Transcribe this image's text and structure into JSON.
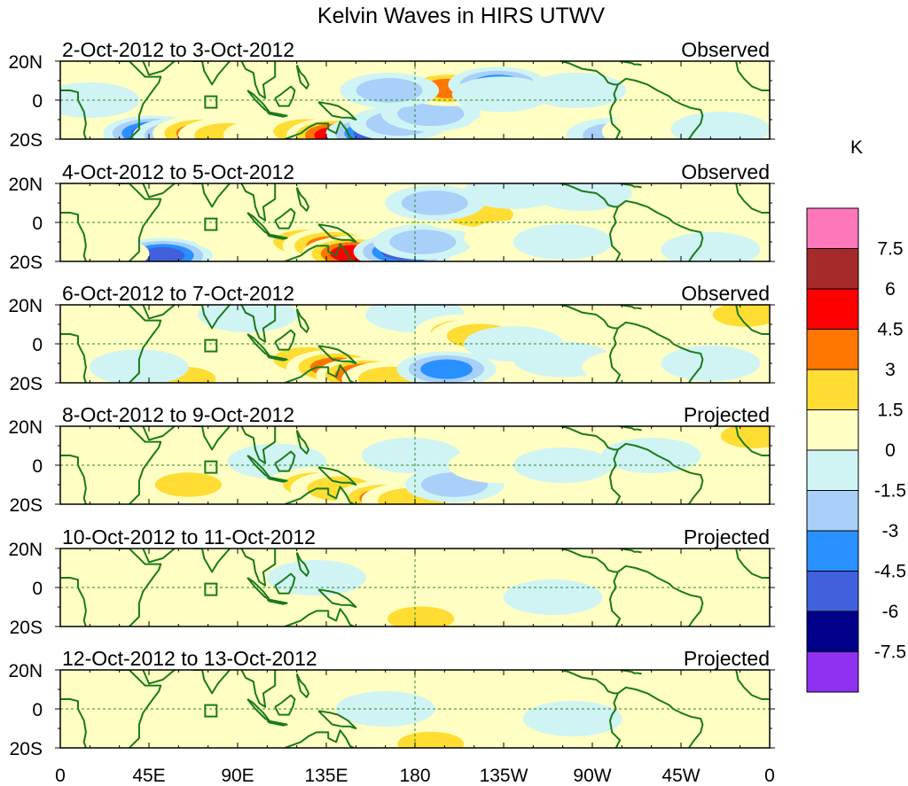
{
  "chart_data": {
    "type": "heatmap",
    "title": "Kelvin Waves in HIRS UTWV",
    "xlabel": "",
    "ylabel": "",
    "x_tick_labels": [
      "0",
      "45E",
      "90E",
      "135E",
      "180",
      "135W",
      "90W",
      "45W",
      "0"
    ],
    "y_tick_labels": [
      "20N",
      "0",
      "20S"
    ],
    "panels": [
      {
        "date_range": "2-Oct-2012 to 3-Oct-2012",
        "status": "Observed"
      },
      {
        "date_range": "4-Oct-2012 to 5-Oct-2012",
        "status": "Observed"
      },
      {
        "date_range": "6-Oct-2012 to 7-Oct-2012",
        "status": "Observed"
      },
      {
        "date_range": "8-Oct-2012 to 9-Oct-2012",
        "status": "Projected"
      },
      {
        "date_range": "10-Oct-2012 to 11-Oct-2012",
        "status": "Projected"
      },
      {
        "date_range": "12-Oct-2012 to 13-Oct-2012",
        "status": "Projected"
      }
    ],
    "colorbar": {
      "units": "K",
      "tick_labels": [
        "7.5",
        "6",
        "4.5",
        "3",
        "1.5",
        "0",
        "-1.5",
        "-3",
        "-4.5",
        "-6",
        "-7.5"
      ],
      "colors": [
        "#ff77bb",
        "#a52a2a",
        "#ff0000",
        "#ff7700",
        "#ffdd33",
        "#ffffc4",
        "#d0f4f4",
        "#a8d0f8",
        "#2891ff",
        "#4060dd",
        "#00008b",
        "#9030f0"
      ]
    },
    "anomalies": [
      [
        {
          "lon": 47,
          "lat": -17,
          "v": -5.5
        },
        {
          "lon": 62,
          "lat": -18,
          "v": -3.5
        },
        {
          "lon": 72,
          "lat": -17,
          "v": 3.8
        },
        {
          "lon": 85,
          "lat": -18,
          "v": 2.8
        },
        {
          "lon": 108,
          "lat": -18,
          "v": 1.4
        },
        {
          "lon": 125,
          "lat": -16,
          "v": 2.6
        },
        {
          "lon": 140,
          "lat": -18,
          "v": 4.6
        },
        {
          "lon": 160,
          "lat": -17,
          "v": -5.5
        },
        {
          "lon": 172,
          "lat": -12,
          "v": -2.5
        },
        {
          "lon": 188,
          "lat": -7,
          "v": -1.6
        },
        {
          "lon": 197,
          "lat": 6,
          "v": 3.6
        },
        {
          "lon": 222,
          "lat": 8,
          "v": -3.2
        },
        {
          "lon": 224,
          "lat": 3,
          "v": -1.5
        },
        {
          "lon": 167,
          "lat": 5,
          "v": -1.6
        },
        {
          "lon": 262,
          "lat": 5,
          "v": -1.5
        },
        {
          "lon": 282,
          "lat": -18,
          "v": -1.6
        },
        {
          "lon": 300,
          "lat": -16,
          "v": 1.0
        },
        {
          "lon": 335,
          "lat": -15,
          "v": -1.3
        },
        {
          "lon": 15,
          "lat": 0,
          "v": -1.2
        },
        {
          "lon": 232,
          "lat": -15,
          "v": 1.1
        }
      ],
      [
        {
          "lon": 52,
          "lat": -17,
          "v": -5.0
        },
        {
          "lon": 92,
          "lat": -7,
          "v": 1.1
        },
        {
          "lon": 125,
          "lat": -10,
          "v": 2.4
        },
        {
          "lon": 138,
          "lat": -12,
          "v": 3.3
        },
        {
          "lon": 148,
          "lat": -16,
          "v": 5.0
        },
        {
          "lon": 174,
          "lat": -15,
          "v": -5.6
        },
        {
          "lon": 184,
          "lat": -10,
          "v": -2.3
        },
        {
          "lon": 205,
          "lat": 5,
          "v": 2.6
        },
        {
          "lon": 213,
          "lat": 4,
          "v": 2.0
        },
        {
          "lon": 190,
          "lat": 10,
          "v": -1.7
        },
        {
          "lon": 230,
          "lat": -8,
          "v": 1.2
        },
        {
          "lon": 255,
          "lat": -10,
          "v": -1.3
        },
        {
          "lon": 265,
          "lat": 15,
          "v": -1.3
        },
        {
          "lon": 230,
          "lat": 16,
          "v": -1.2
        },
        {
          "lon": 20,
          "lat": -16,
          "v": 1.0
        },
        {
          "lon": 330,
          "lat": -14,
          "v": -1.3
        },
        {
          "lon": 345,
          "lat": 17,
          "v": 1.4
        }
      ],
      [
        {
          "lon": 62,
          "lat": -18,
          "v": 1.6
        },
        {
          "lon": 40,
          "lat": -12,
          "v": -1.4
        },
        {
          "lon": 105,
          "lat": -5,
          "v": 1.4
        },
        {
          "lon": 125,
          "lat": -8,
          "v": 2.3
        },
        {
          "lon": 140,
          "lat": -12,
          "v": 4.0
        },
        {
          "lon": 155,
          "lat": -16,
          "v": 5.4
        },
        {
          "lon": 168,
          "lat": -18,
          "v": 3.0
        },
        {
          "lon": 196,
          "lat": -13,
          "v": -3.8
        },
        {
          "lon": 180,
          "lat": 15,
          "v": -1.2
        },
        {
          "lon": 205,
          "lat": 6,
          "v": 1.7
        },
        {
          "lon": 213,
          "lat": 4,
          "v": 1.8
        },
        {
          "lon": 230,
          "lat": 0,
          "v": -1.4
        },
        {
          "lon": 255,
          "lat": -8,
          "v": -1.3
        },
        {
          "lon": 290,
          "lat": -12,
          "v": 1.0
        },
        {
          "lon": 348,
          "lat": 15,
          "v": 1.6
        },
        {
          "lon": 330,
          "lat": -10,
          "v": -1.5
        },
        {
          "lon": 95,
          "lat": 15,
          "v": -1.2
        }
      ],
      [
        {
          "lon": 35,
          "lat": -3,
          "v": 1.2
        },
        {
          "lon": 65,
          "lat": -10,
          "v": 1.6
        },
        {
          "lon": 110,
          "lat": 2,
          "v": -1.2
        },
        {
          "lon": 130,
          "lat": -10,
          "v": 1.6
        },
        {
          "lon": 142,
          "lat": -12,
          "v": 2.2
        },
        {
          "lon": 165,
          "lat": -17,
          "v": 3.8
        },
        {
          "lon": 178,
          "lat": -18,
          "v": 2.8
        },
        {
          "lon": 178,
          "lat": 5,
          "v": -1.3
        },
        {
          "lon": 200,
          "lat": -10,
          "v": -1.8
        },
        {
          "lon": 222,
          "lat": 0,
          "v": 1.4
        },
        {
          "lon": 255,
          "lat": 0,
          "v": -1.4
        },
        {
          "lon": 300,
          "lat": 5,
          "v": -1.2
        },
        {
          "lon": 352,
          "lat": 15,
          "v": 1.8
        },
        {
          "lon": 225,
          "lat": 15,
          "v": 1.0
        }
      ],
      [
        {
          "lon": 45,
          "lat": -10,
          "v": 1.0
        },
        {
          "lon": 95,
          "lat": -5,
          "v": 0.8
        },
        {
          "lon": 130,
          "lat": 5,
          "v": -0.8
        },
        {
          "lon": 168,
          "lat": -12,
          "v": 1.5
        },
        {
          "lon": 183,
          "lat": -16,
          "v": 2.6
        },
        {
          "lon": 220,
          "lat": 5,
          "v": 0.8
        },
        {
          "lon": 250,
          "lat": -5,
          "v": -1.0
        },
        {
          "lon": 310,
          "lat": 10,
          "v": 0.8
        },
        {
          "lon": 350,
          "lat": 15,
          "v": 1.0
        }
      ],
      [
        {
          "lon": 50,
          "lat": -10,
          "v": 0.8
        },
        {
          "lon": 110,
          "lat": -8,
          "v": 0.8
        },
        {
          "lon": 165,
          "lat": 0,
          "v": -0.8
        },
        {
          "lon": 188,
          "lat": -18,
          "v": 2.0
        },
        {
          "lon": 230,
          "lat": 5,
          "v": 0.7
        },
        {
          "lon": 260,
          "lat": -5,
          "v": -0.8
        },
        {
          "lon": 320,
          "lat": 10,
          "v": 0.6
        },
        {
          "lon": 20,
          "lat": 10,
          "v": 0.7
        }
      ]
    ]
  }
}
